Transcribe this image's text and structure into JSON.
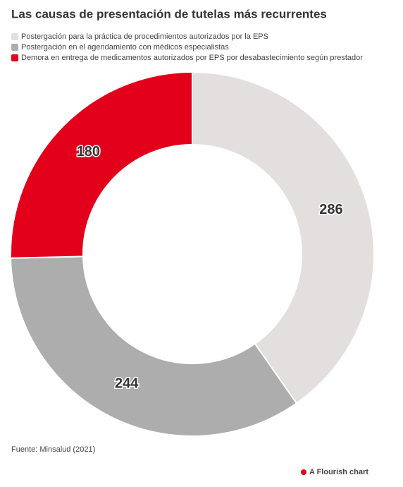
{
  "chart_data": {
    "type": "donut",
    "title": "Las causas de presentación de tutelas más recurrentes",
    "categories": [
      "Postergación para la práctica de procedimientos autorizados por la EPS",
      "Postergación en el agendamiento con médicos especialistas",
      "Demora en entrega de medicamentos autorizados por EPS por desabastecimiento según prestador"
    ],
    "values": [
      286,
      244,
      180
    ],
    "colors": [
      "#e3dfdf",
      "#adadad",
      "#e3001b"
    ],
    "source": "Fuente: Minsalud (2021)",
    "credit": "A Flourish chart"
  }
}
